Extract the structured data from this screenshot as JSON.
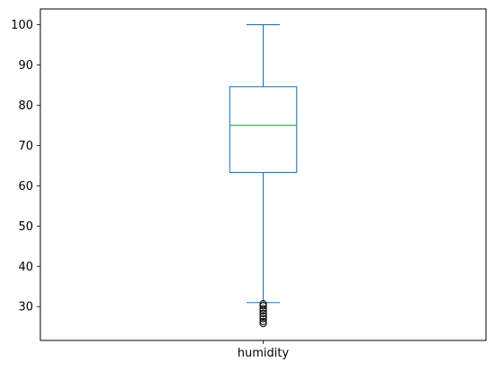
{
  "chart_data": {
    "type": "box",
    "title": "",
    "xlabel": "",
    "ylabel": "",
    "categories": [
      "humidity"
    ],
    "ylim": [
      21.6,
      103.9
    ],
    "yticks": [
      30,
      40,
      50,
      60,
      70,
      80,
      90,
      100
    ],
    "grid": false,
    "boxes": [
      {
        "name": "humidity",
        "whisker_low": 31,
        "q1": 63.3,
        "median": 75,
        "q3": 84.6,
        "whisker_high": 100,
        "outliers": [
          30.7,
          30.2,
          29.5,
          29.0,
          28.3,
          27.6,
          27.0,
          26.3,
          25.8
        ]
      }
    ],
    "colors": {
      "box": "#1f77b4",
      "median": "#2ca02c",
      "outlier": "#000000",
      "axes": "#000000"
    }
  }
}
